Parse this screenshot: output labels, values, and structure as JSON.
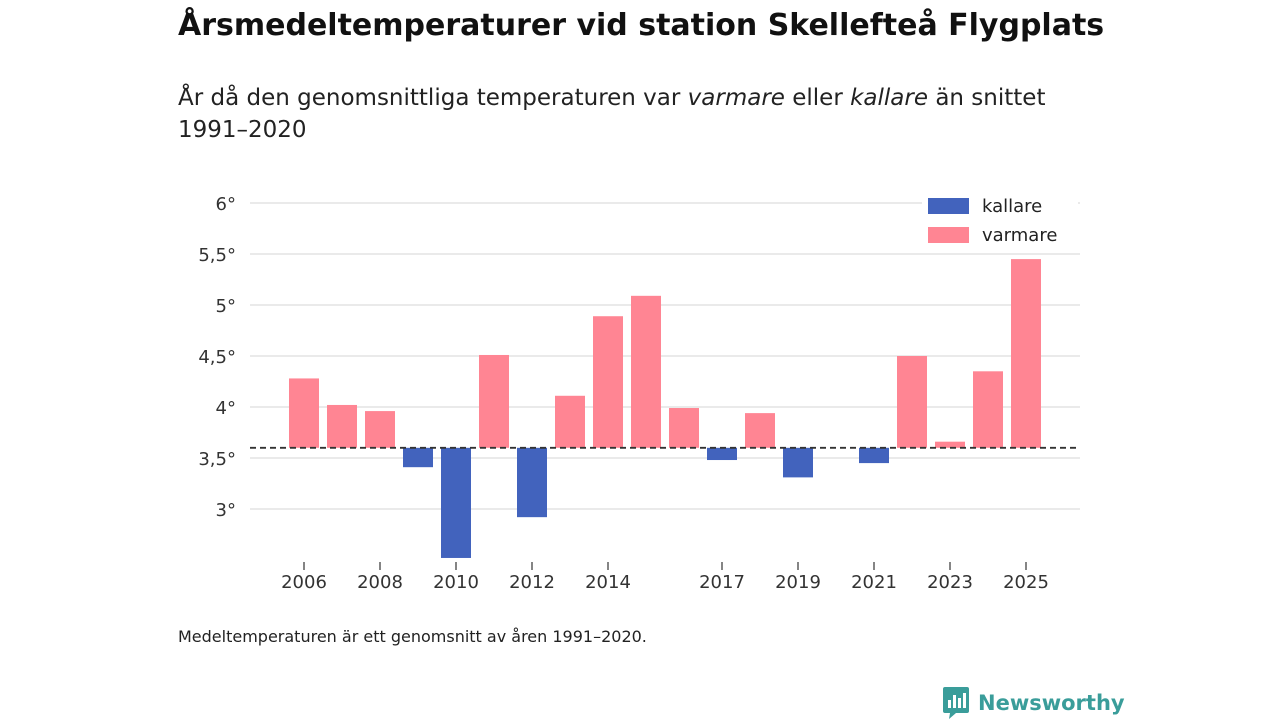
{
  "header": {
    "title": "Årsmedeltemperaturer vid station Skellefteå Flygplats",
    "subtitle_prefix": "År då den genomsnittliga temperaturen var ",
    "subtitle_warm": "varmare",
    "subtitle_mid": " eller ",
    "subtitle_cold": "kallare",
    "subtitle_suffix": " än snittet 1991–2020"
  },
  "footer": {
    "note": "Medeltemperaturen är ett genomsnitt av åren 1991–2020.",
    "brand": "Newsworthy"
  },
  "colors": {
    "colder": "#4263bd",
    "warmer": "#ff8593",
    "grid": "#dddddd",
    "baseline": "#333333",
    "brand": "#3a9d9a"
  },
  "chart_data": {
    "type": "bar",
    "baseline": 3.6,
    "years": [
      2006,
      2007,
      2008,
      2009,
      2010,
      2011,
      2012,
      2013,
      2014,
      2015,
      2016,
      2017,
      2018,
      2019,
      2020,
      2021,
      2022,
      2023,
      2024,
      2025
    ],
    "values": [
      4.28,
      4.02,
      3.96,
      3.41,
      2.52,
      4.51,
      2.92,
      4.11,
      4.89,
      5.09,
      3.99,
      3.48,
      3.94,
      3.31,
      null,
      3.45,
      4.5,
      3.66,
      4.35,
      5.45
    ],
    "tick_years": [
      2006,
      2008,
      2010,
      2012,
      2014,
      2017,
      2019,
      2021,
      2023,
      2025
    ],
    "tick_labels": [
      "2006",
      "2008",
      "2010",
      "2012",
      "2014",
      "2017",
      "2019",
      "2021",
      "2023",
      "2025"
    ],
    "y_ticks": [
      3,
      3.5,
      4,
      4.5,
      5,
      5.5,
      6
    ],
    "y_tick_labels": [
      "3°",
      "3,5°",
      "4°",
      "4,5°",
      "5°",
      "5,5°",
      "6°"
    ],
    "ylim": [
      2.5,
      6
    ],
    "legend": [
      {
        "key": "colder",
        "label": "kallare"
      },
      {
        "key": "warmer",
        "label": "varmare"
      }
    ],
    "legend_position": "top-right"
  }
}
